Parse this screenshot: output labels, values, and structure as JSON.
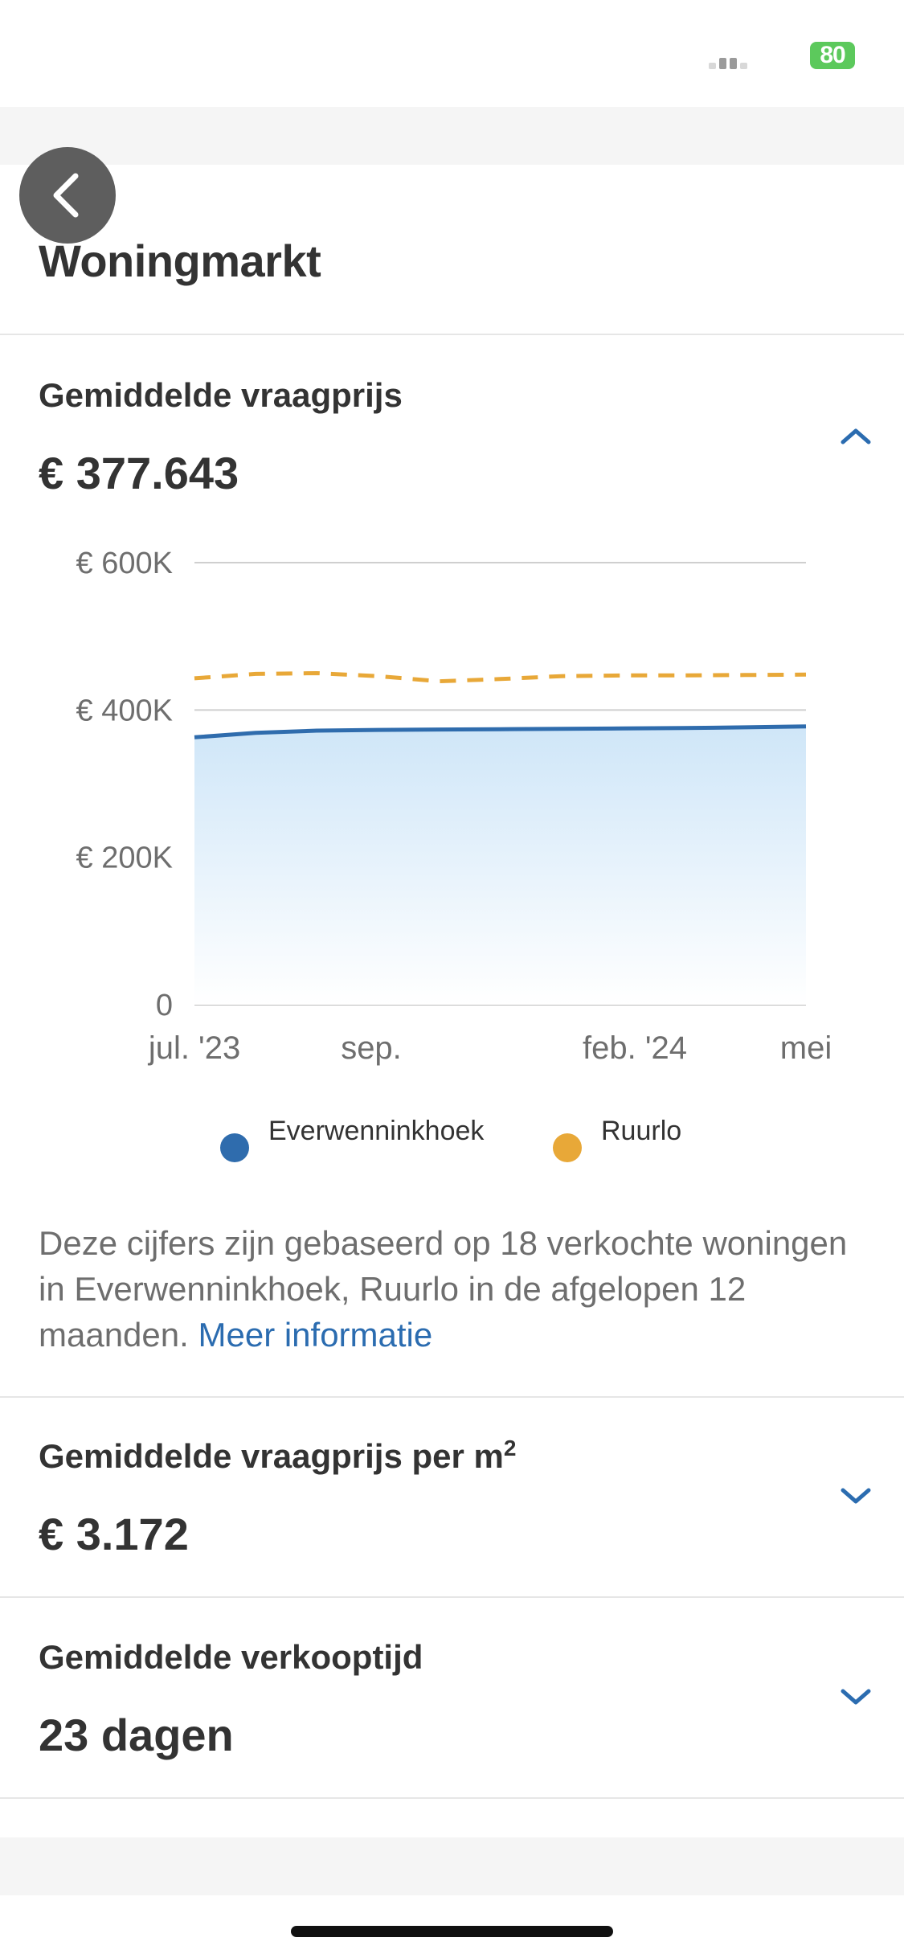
{
  "status_bar": {
    "battery": "80"
  },
  "header": {
    "title": "Woningmarkt"
  },
  "sections": [
    {
      "label": "Gemiddelde vraagprijs",
      "value": "€ 377.643",
      "expanded": true
    },
    {
      "label": "Gemiddelde vraagprijs per m",
      "label_sup": "2",
      "value": "€ 3.172",
      "expanded": false
    },
    {
      "label": "Gemiddelde verkooptijd",
      "value": "23 dagen",
      "expanded": false
    }
  ],
  "info": {
    "text": "Deze cijfers zijn gebaseerd op 18 verkochte woningen in Everwenninkhoek, Ruurlo in de afgelopen 12 maanden.",
    "link": "Meer informatie"
  },
  "chart_data": {
    "type": "area",
    "y_ticks": [
      "€ 600K",
      "€ 400K",
      "€ 200K",
      "0"
    ],
    "ylim": [
      0,
      600000
    ],
    "x_ticks": [
      "jul. '23",
      "sep.",
      "feb. '24",
      "mei"
    ],
    "x": [
      "2023-07",
      "2023-08",
      "2023-09",
      "2023-10",
      "2023-11",
      "2023-12",
      "2024-01",
      "2024-02",
      "2024-03",
      "2024-04",
      "2024-05"
    ],
    "series": [
      {
        "name": "Everwenninkhoek",
        "color": "#2f6cad",
        "style": "solid-area",
        "values": [
          363000,
          369000,
          372000,
          373000,
          373500,
          374000,
          374500,
          375000,
          375500,
          376500,
          377643
        ]
      },
      {
        "name": "Ruurlo",
        "color": "#e8a838",
        "style": "dashed",
        "values": [
          443000,
          449000,
          450000,
          446000,
          439000,
          442000,
          446000,
          447000,
          447000,
          447500,
          448000
        ]
      }
    ],
    "grid": true,
    "legend_position": "bottom"
  }
}
